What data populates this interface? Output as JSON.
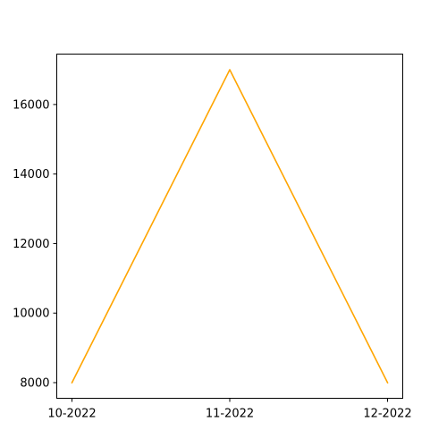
{
  "chart_data": {
    "type": "line",
    "categories": [
      "10-2022",
      "11-2022",
      "12-2022"
    ],
    "series": [
      {
        "values": [
          8000,
          17000,
          8000
        ],
        "color": "#ffa500"
      }
    ],
    "ylim": [
      7550,
      17450
    ],
    "yticks": [
      8000,
      10000,
      12000,
      14000,
      16000
    ],
    "ytick_labels": [
      "8000",
      "10000",
      "12000",
      "14000",
      "16000"
    ],
    "xlabel": "",
    "ylabel": "",
    "grid": false,
    "legend": "none"
  }
}
